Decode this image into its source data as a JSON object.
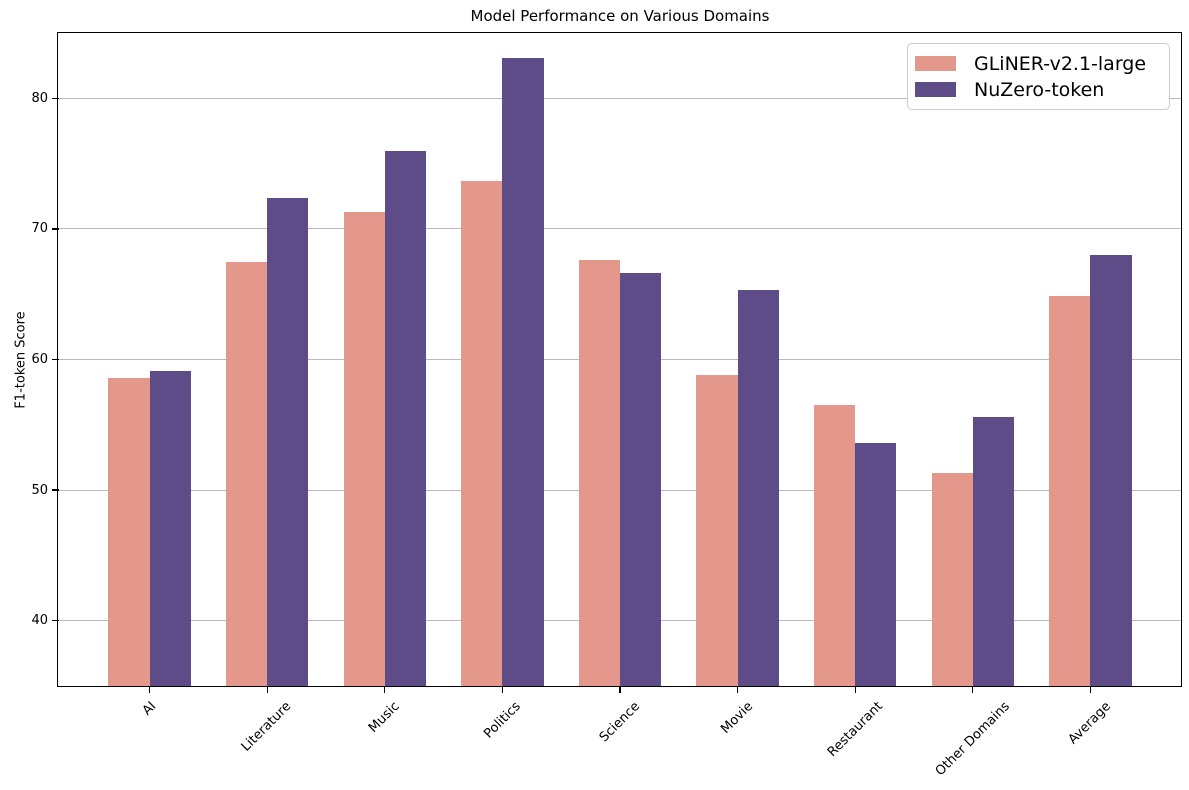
{
  "chart_data": {
    "type": "bar",
    "title": "Model Performance on Various Domains",
    "xlabel": "",
    "ylabel": "F1-token Score",
    "categories": [
      "AI",
      "Literature",
      "Music",
      "Politics",
      "Science",
      "Movie",
      "Restaurant",
      "Other Domains",
      "Average"
    ],
    "series": [
      {
        "name": "GLiNER-v2.1-large",
        "color": "#E4988B",
        "values": [
          58.6,
          67.5,
          71.3,
          73.7,
          67.6,
          58.8,
          56.5,
          51.3,
          64.9
        ]
      },
      {
        "name": "NuZero-token",
        "color": "#5E4C89",
        "values": [
          59.1,
          72.4,
          76.0,
          83.1,
          66.6,
          65.3,
          53.6,
          55.6,
          68.0
        ]
      }
    ],
    "yticks": [
      40,
      50,
      60,
      70,
      80
    ],
    "ylim": [
      35,
      85
    ],
    "bar_width": 0.35,
    "grid": "horizontal",
    "grid_color": "#b9b9b9",
    "legend_position": "upper-right"
  }
}
